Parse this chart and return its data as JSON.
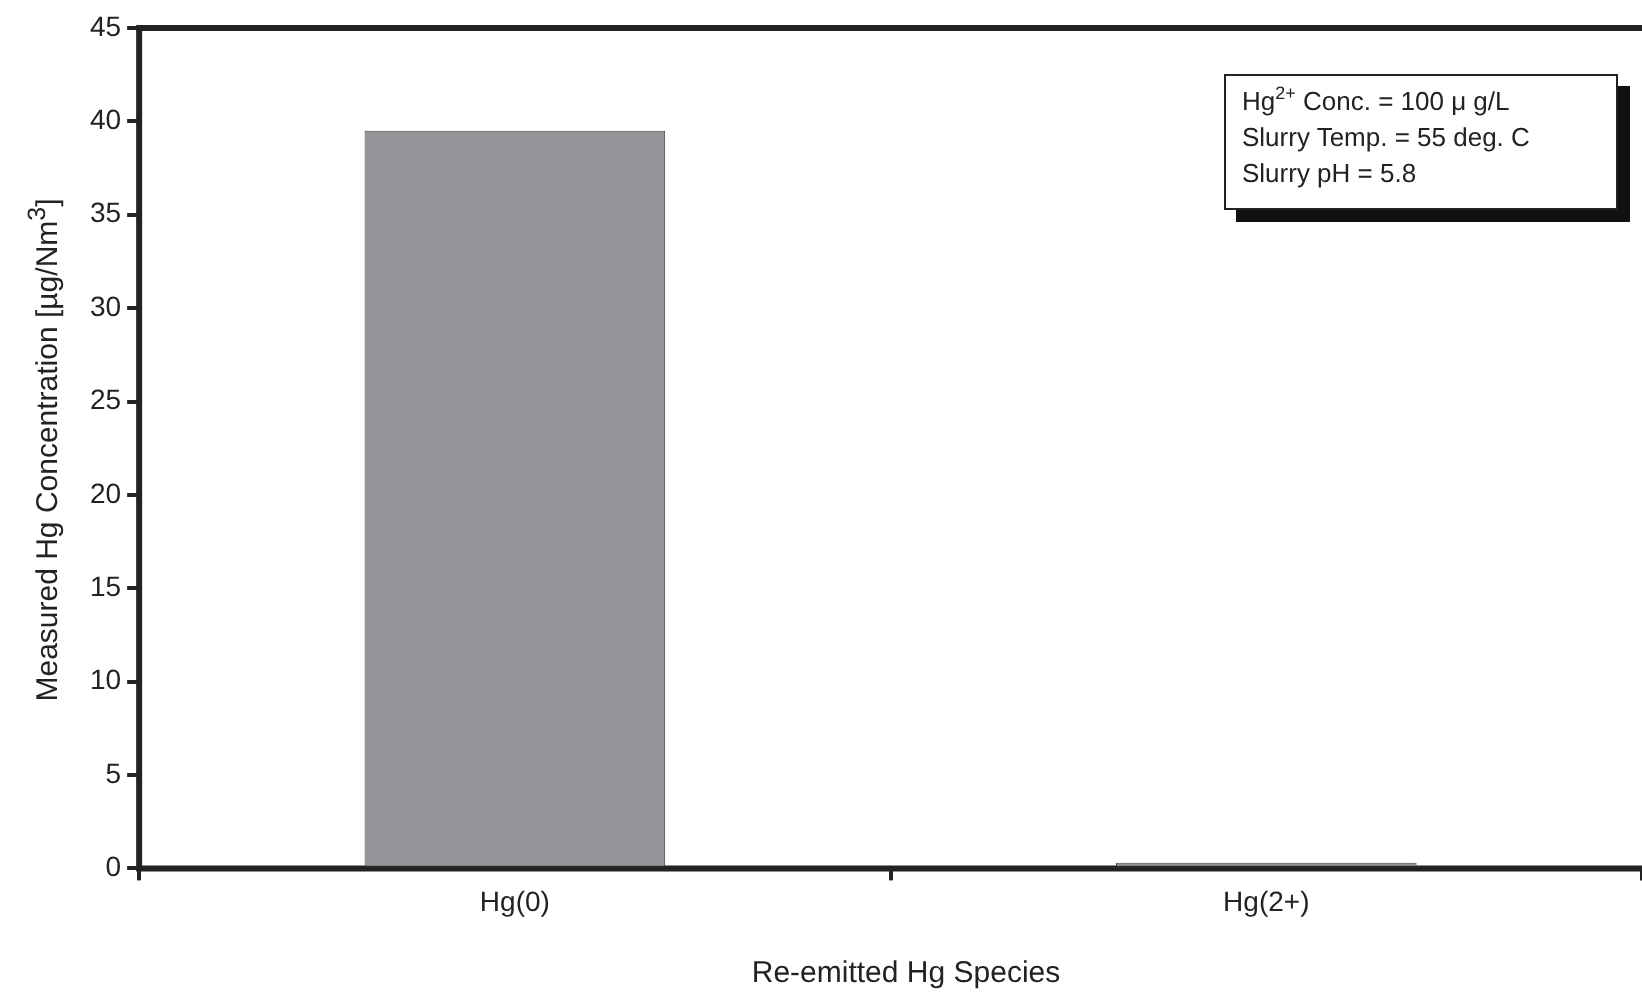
{
  "chart_data": {
    "type": "bar",
    "xlabel": "Re-emitted Hg Species",
    "ylabel": "Measured Hg Concentration [µg/Nm$^{3}$]",
    "categories": [
      "Hg(0)",
      "Hg(2+)"
    ],
    "values": [
      39.5,
      0.3
    ],
    "color": "#939598",
    "ylim": [
      0,
      45
    ],
    "yticks": [
      0,
      5,
      10,
      15,
      20,
      25,
      30,
      35,
      40,
      45
    ],
    "grid": false,
    "legend": false,
    "annotations": [
      "Hg$^{2+}$ Conc. = 100 μ g/L",
      "Slurry Temp. = 55 deg. C",
      "Slurry pH = 5.8"
    ]
  }
}
